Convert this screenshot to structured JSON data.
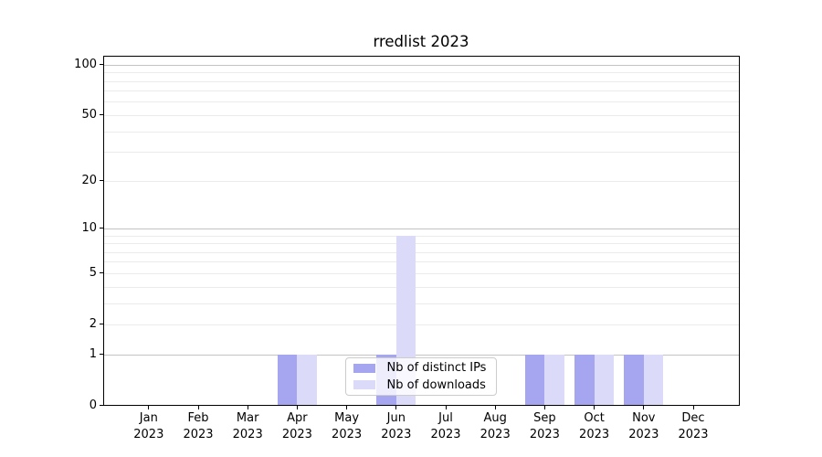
{
  "chart_data": {
    "type": "bar",
    "title": "rredlist 2023",
    "categories": [
      "Jan 2023",
      "Feb 2023",
      "Mar 2023",
      "Apr 2023",
      "May 2023",
      "Jun 2023",
      "Jul 2023",
      "Aug 2023",
      "Sep 2023",
      "Oct 2023",
      "Nov 2023",
      "Dec 2023"
    ],
    "x_tick_lines": [
      [
        "Jan",
        "2023"
      ],
      [
        "Feb",
        "2023"
      ],
      [
        "Mar",
        "2023"
      ],
      [
        "Apr",
        "2023"
      ],
      [
        "May",
        "2023"
      ],
      [
        "Jun",
        "2023"
      ],
      [
        "Jul",
        "2023"
      ],
      [
        "Aug",
        "2023"
      ],
      [
        "Sep",
        "2023"
      ],
      [
        "Oct",
        "2023"
      ],
      [
        "Nov",
        "2023"
      ],
      [
        "Dec",
        "2023"
      ]
    ],
    "series": [
      {
        "name": "Nb of distinct IPs",
        "color": "#a6a6f0",
        "values": [
          0,
          0,
          0,
          1,
          0,
          1,
          0,
          0,
          1,
          1,
          1,
          0
        ]
      },
      {
        "name": "Nb of downloads",
        "color": "#dbdbf9",
        "values": [
          0,
          0,
          0,
          1,
          0,
          9,
          0,
          0,
          1,
          1,
          1,
          0
        ]
      }
    ],
    "y_axis": {
      "scale": "log10(1+v)",
      "ylim": [
        0,
        113
      ],
      "tick_values": [
        0,
        1,
        2,
        5,
        10,
        20,
        50,
        100
      ],
      "tick_labels": [
        "0",
        "1",
        "2",
        "5",
        "10",
        "20",
        "50",
        "100"
      ],
      "major_gridlines": [
        1,
        10,
        100
      ],
      "minor_gridlines": [
        2,
        3,
        4,
        5,
        6,
        7,
        8,
        9,
        20,
        30,
        40,
        50,
        60,
        70,
        80,
        90
      ]
    },
    "grid": true,
    "legend": {
      "position": "lower center",
      "entries": [
        "Nb of distinct IPs",
        "Nb of downloads"
      ]
    },
    "colors": {
      "background": "#ffffff",
      "axis": "#000000",
      "major_grid": "#c3c3c3",
      "minor_grid": "#ebebeb",
      "bar_distinct_ips": "#a6a6f0",
      "bar_downloads": "#dbdbf9"
    }
  }
}
